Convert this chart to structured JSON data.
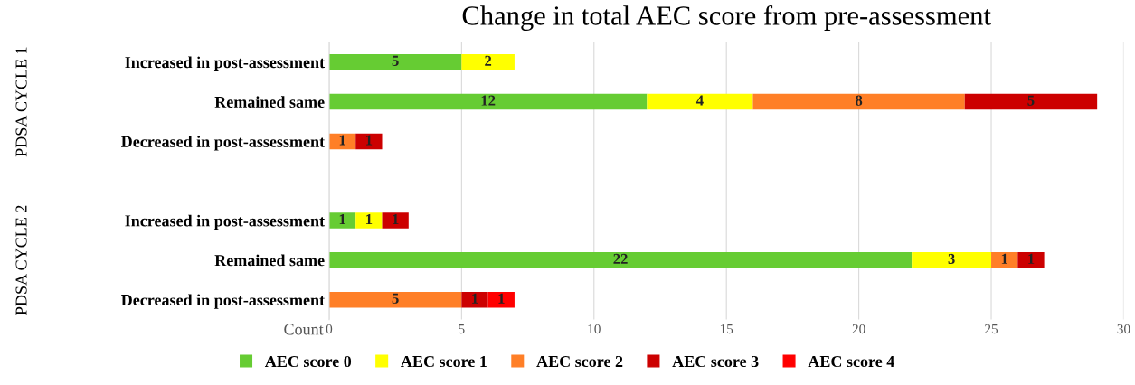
{
  "chart_data": {
    "type": "bar",
    "orientation": "horizontal",
    "stacked": true,
    "title": "Change in total AEC score from pre-assessment",
    "xlabel": "Count",
    "categories": [
      "Increased in post-assessment",
      "Remained same",
      "Decreased in post-assessment",
      null,
      "Increased in post-assessment",
      "Remained same",
      "Decreased in post-assessment"
    ],
    "series": [
      {
        "name": "AEC score 0",
        "color": "#66cc33",
        "values": [
          5,
          12,
          null,
          null,
          1,
          22,
          null
        ]
      },
      {
        "name": "AEC score 1",
        "color": "#ffff00",
        "values": [
          2,
          4,
          null,
          null,
          1,
          3,
          null
        ]
      },
      {
        "name": "AEC score 2",
        "color": "#ff7f27",
        "values": [
          null,
          8,
          1,
          null,
          null,
          1,
          5
        ]
      },
      {
        "name": "AEC score 3",
        "color": "#cc0000",
        "values": [
          null,
          5,
          1,
          null,
          1,
          1,
          1
        ]
      },
      {
        "name": "AEC score 4",
        "color": "#ff0000",
        "values": [
          null,
          null,
          null,
          null,
          null,
          null,
          1
        ]
      }
    ],
    "annotations": [
      "PDSA CYCLE 1",
      "PDSA CYCLE 2"
    ],
    "xlim": [
      0,
      30
    ],
    "xticks": [
      0,
      5,
      10,
      15,
      20,
      25,
      30
    ],
    "grid": "x",
    "legend": "bottom",
    "data_labels": true
  }
}
